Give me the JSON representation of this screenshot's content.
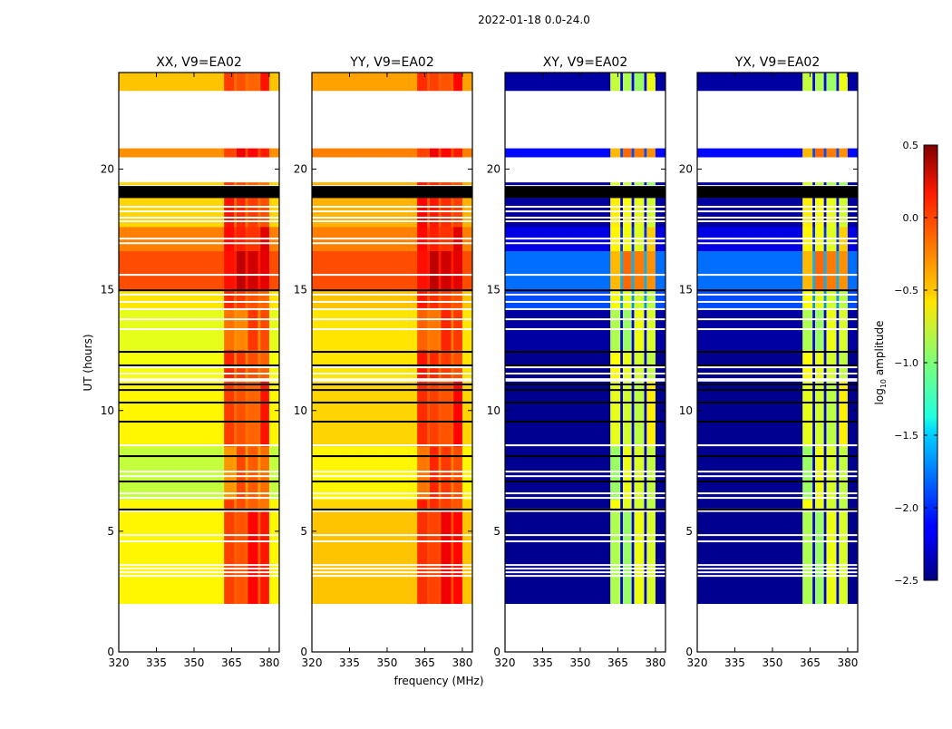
{
  "chart_data": {
    "type": "heatmap",
    "suptitle": "2022-01-18 0.0-24.0",
    "xlabel": "frequency (MHz)",
    "ylabel": "UT (hours)",
    "xlim": [
      320,
      384
    ],
    "ylim": [
      0,
      24
    ],
    "xticks": [
      320,
      335,
      350,
      365,
      380
    ],
    "yticks": [
      0,
      5,
      10,
      15,
      20
    ],
    "colorbar": {
      "label_main": "log",
      "label_sub": "10",
      "label_rest": " amplitude",
      "range": [
        -2.5,
        0.5
      ],
      "ticks": [
        "0.5",
        "0.0",
        "−0.5",
        "−1.0",
        "−1.5",
        "−2.0",
        "−2.5"
      ],
      "tick_values": [
        0.5,
        0.0,
        -0.5,
        -1.0,
        -1.5,
        -2.0,
        -2.5
      ],
      "colormap": "jet"
    },
    "panels": [
      {
        "title": "XX, V9=EA02"
      },
      {
        "title": "YY, V9=EA02"
      },
      {
        "title": "XY, V9=EA02"
      },
      {
        "title": "YX, V9=EA02"
      }
    ],
    "freq_segments": [
      {
        "from": 320,
        "to": 362,
        "kind": "base"
      },
      {
        "from": 362,
        "to": 366,
        "kind": "block"
      },
      {
        "from": 366,
        "to": 367,
        "kind": "gap"
      },
      {
        "from": 367,
        "to": 370.5,
        "kind": "block"
      },
      {
        "from": 370.5,
        "to": 371.5,
        "kind": "gap"
      },
      {
        "from": 371.5,
        "to": 375.5,
        "kind": "block"
      },
      {
        "from": 375.5,
        "to": 376.5,
        "kind": "gap"
      },
      {
        "from": 376.5,
        "to": 380,
        "kind": "block"
      },
      {
        "from": 380,
        "to": 384,
        "kind": "base"
      }
    ],
    "time_bands": [
      {
        "from": 23.25,
        "to": 24.0,
        "base": [
          -0.45,
          -0.35,
          -2.4,
          -2.4
        ],
        "block": [
          -0.05,
          0.0,
          -0.8,
          -0.8
        ]
      },
      {
        "from": 20.5,
        "to": 20.86,
        "base": [
          -0.3,
          -0.25,
          -2.1,
          -2.1
        ],
        "block": [
          0.05,
          0.05,
          -0.3,
          -0.3
        ]
      },
      {
        "from": 19.35,
        "to": 19.45,
        "base": [
          -0.5,
          -0.4,
          -2.4,
          -2.4
        ],
        "block": [
          -0.1,
          0.0,
          -0.8,
          -0.8
        ]
      },
      {
        "from": 18.8,
        "to": 19.3,
        "base": "flagged",
        "block": "flagged"
      },
      {
        "from": 17.6,
        "to": 18.8,
        "base": [
          -0.5,
          -0.4,
          -2.4,
          -2.4
        ],
        "block": [
          -0.05,
          0.0,
          -0.7,
          -0.7
        ]
      },
      {
        "from": 16.6,
        "to": 17.6,
        "base": [
          -0.25,
          -0.25,
          -2.2,
          -2.2
        ],
        "block": [
          0.1,
          0.1,
          -0.6,
          -0.6
        ]
      },
      {
        "from": 15.0,
        "to": 16.6,
        "base": [
          -0.1,
          -0.1,
          -1.8,
          -1.8
        ],
        "block": [
          0.2,
          0.2,
          -0.3,
          -0.3
        ]
      },
      {
        "from": 14.2,
        "to": 15.0,
        "base": [
          -0.55,
          -0.45,
          -1.9,
          -1.9
        ],
        "block": [
          -0.05,
          0.0,
          -0.7,
          -0.7
        ]
      },
      {
        "from": 12.5,
        "to": 14.2,
        "base": [
          -0.7,
          -0.55,
          -2.4,
          -2.4
        ],
        "block": [
          -0.15,
          -0.1,
          -0.8,
          -0.8
        ]
      },
      {
        "from": 11.3,
        "to": 12.5,
        "base": [
          -0.65,
          -0.55,
          -2.45,
          -2.45
        ],
        "block": [
          -0.1,
          -0.05,
          -0.75,
          -0.75
        ]
      },
      {
        "from": 8.5,
        "to": 11.2,
        "base": [
          -0.6,
          -0.5,
          -2.45,
          -2.45
        ],
        "block": [
          -0.05,
          0.0,
          -0.7,
          -0.7
        ]
      },
      {
        "from": 6.3,
        "to": 8.5,
        "base": [
          -0.8,
          -0.6,
          -2.45,
          -2.45
        ],
        "block": [
          -0.2,
          -0.1,
          -0.8,
          -0.8
        ]
      },
      {
        "from": 5.95,
        "to": 6.3,
        "base": [
          -0.6,
          -0.5,
          -2.45,
          -2.45
        ],
        "block": [
          -0.1,
          0.0,
          -0.7,
          -0.7
        ]
      },
      {
        "from": 2.0,
        "to": 5.8,
        "base": [
          -0.6,
          -0.45,
          -2.45,
          -2.45
        ],
        "block": [
          0.0,
          0.05,
          -0.8,
          -0.8
        ]
      }
    ],
    "white_lines": [
      18.44,
      18.25,
      17.99,
      17.84,
      17.12,
      16.93,
      15.62,
      14.8,
      14.5,
      14.2,
      13.78,
      13.37,
      11.79,
      11.53,
      11.3,
      8.56,
      7.47,
      7.28,
      6.57,
      6.38,
      4.84,
      4.58,
      3.6,
      3.45,
      3.3,
      3.15
    ],
    "black_lines": [
      14.98,
      12.43,
      11.87,
      11.08,
      10.85,
      10.33,
      9.54,
      8.11,
      7.06,
      5.9
    ]
  }
}
